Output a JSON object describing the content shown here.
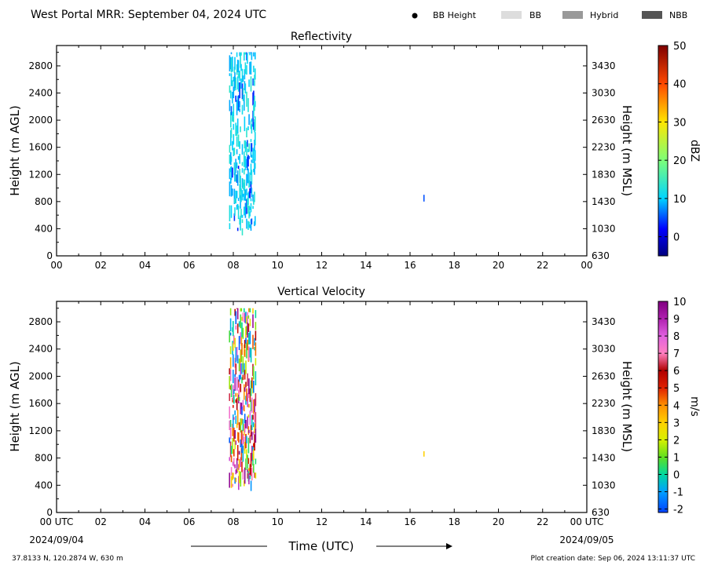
{
  "header": {
    "title": "West Portal MRR:  September 04, 2024 UTC"
  },
  "legend": [
    {
      "label": "BB Height",
      "kind": "dot",
      "color": "#000000"
    },
    {
      "label": "BB",
      "kind": "swatch",
      "color": "#dddddd"
    },
    {
      "label": "Hybrid",
      "kind": "swatch",
      "color": "#999999"
    },
    {
      "label": "NBB",
      "kind": "swatch",
      "color": "#555555"
    }
  ],
  "footer": {
    "start_date": "2024/09/04",
    "end_date": "2024/09/05",
    "location": "37.8133 N, 120.2874 W, 630 m",
    "creation": "Plot creation date: Sep 06, 2024 13:11:37 UTC"
  },
  "chart_data": [
    {
      "type": "heatmap",
      "title": "Reflectivity",
      "ylabel": "Height (m AGL)",
      "ylabel_right": "Height (m MSL)",
      "colorbar_label": "dBZ",
      "xlim": [
        0,
        24
      ],
      "ylim": [
        0,
        3100
      ],
      "xticks": [
        "00",
        "02",
        "04",
        "06",
        "08",
        "10",
        "12",
        "14",
        "16",
        "18",
        "20",
        "22",
        "00"
      ],
      "yticks": [
        0,
        400,
        800,
        1200,
        1600,
        2000,
        2400,
        2800
      ],
      "yticks_right": [
        "630",
        "1030",
        "1430",
        "1830",
        "2230",
        "2630",
        "3030",
        "3430"
      ],
      "colorbar": {
        "range": [
          -5,
          50
        ],
        "ticks": [
          "0",
          "10",
          "20",
          "30",
          "40",
          "50"
        ],
        "tick_values": [
          0,
          10,
          20,
          30,
          40,
          50
        ],
        "stops": [
          {
            "v": -5,
            "c": "#00007f"
          },
          {
            "v": 2,
            "c": "#0000ff"
          },
          {
            "v": 10,
            "c": "#00d4ff"
          },
          {
            "v": 20,
            "c": "#7cff79"
          },
          {
            "v": 30,
            "c": "#ffe600"
          },
          {
            "v": 40,
            "c": "#ff4800"
          },
          {
            "v": 50,
            "c": "#7f0000"
          }
        ]
      },
      "echo_time_range_utc": [
        7.8,
        9.0
      ],
      "echo_height_range_m": [
        300,
        3000
      ],
      "isolated_echo": {
        "time_utc": 16.6,
        "height_m": [
          800,
          900
        ]
      }
    },
    {
      "type": "heatmap",
      "title": "Vertical Velocity",
      "ylabel": "Height (m AGL)",
      "ylabel_right": "Height (m MSL)",
      "xlabel": "Time (UTC)",
      "colorbar_label": "m/s",
      "xlim": [
        0,
        24
      ],
      "ylim": [
        0,
        3100
      ],
      "xticks": [
        "00 UTC",
        "02",
        "04",
        "06",
        "08",
        "10",
        "12",
        "14",
        "16",
        "18",
        "20",
        "22",
        "00 UTC"
      ],
      "yticks": [
        0,
        400,
        800,
        1200,
        1600,
        2000,
        2400,
        2800
      ],
      "yticks_right": [
        "630",
        "1030",
        "1430",
        "1830",
        "2230",
        "2630",
        "3030",
        "3430"
      ],
      "colorbar": {
        "range": [
          -2.2,
          10
        ],
        "ticks": [
          "-2",
          "-1",
          "0",
          "1",
          "2",
          "3",
          "4",
          "5",
          "6",
          "7",
          "8",
          "9",
          "10"
        ],
        "tick_values": [
          -2,
          -1,
          0,
          1,
          2,
          3,
          4,
          5,
          6,
          7,
          8,
          9,
          10
        ],
        "stops": [
          {
            "v": -2.2,
            "c": "#0040ff"
          },
          {
            "v": -1,
            "c": "#00a0ff"
          },
          {
            "v": 0,
            "c": "#00d8a0"
          },
          {
            "v": 1,
            "c": "#60e020"
          },
          {
            "v": 2,
            "c": "#d8f000"
          },
          {
            "v": 3,
            "c": "#ffd000"
          },
          {
            "v": 4,
            "c": "#ff9000"
          },
          {
            "v": 5,
            "c": "#e02000"
          },
          {
            "v": 6,
            "c": "#b00000"
          },
          {
            "v": 7,
            "c": "#ff80c0"
          },
          {
            "v": 8,
            "c": "#e060e0"
          },
          {
            "v": 9,
            "c": "#b020b0"
          },
          {
            "v": 10,
            "c": "#800080"
          }
        ]
      },
      "echo_time_range_utc": [
        7.8,
        9.0
      ],
      "echo_height_range_m": [
        300,
        3000
      ],
      "isolated_echo": {
        "time_utc": 16.6,
        "height_m": [
          820,
          900
        ]
      }
    }
  ]
}
